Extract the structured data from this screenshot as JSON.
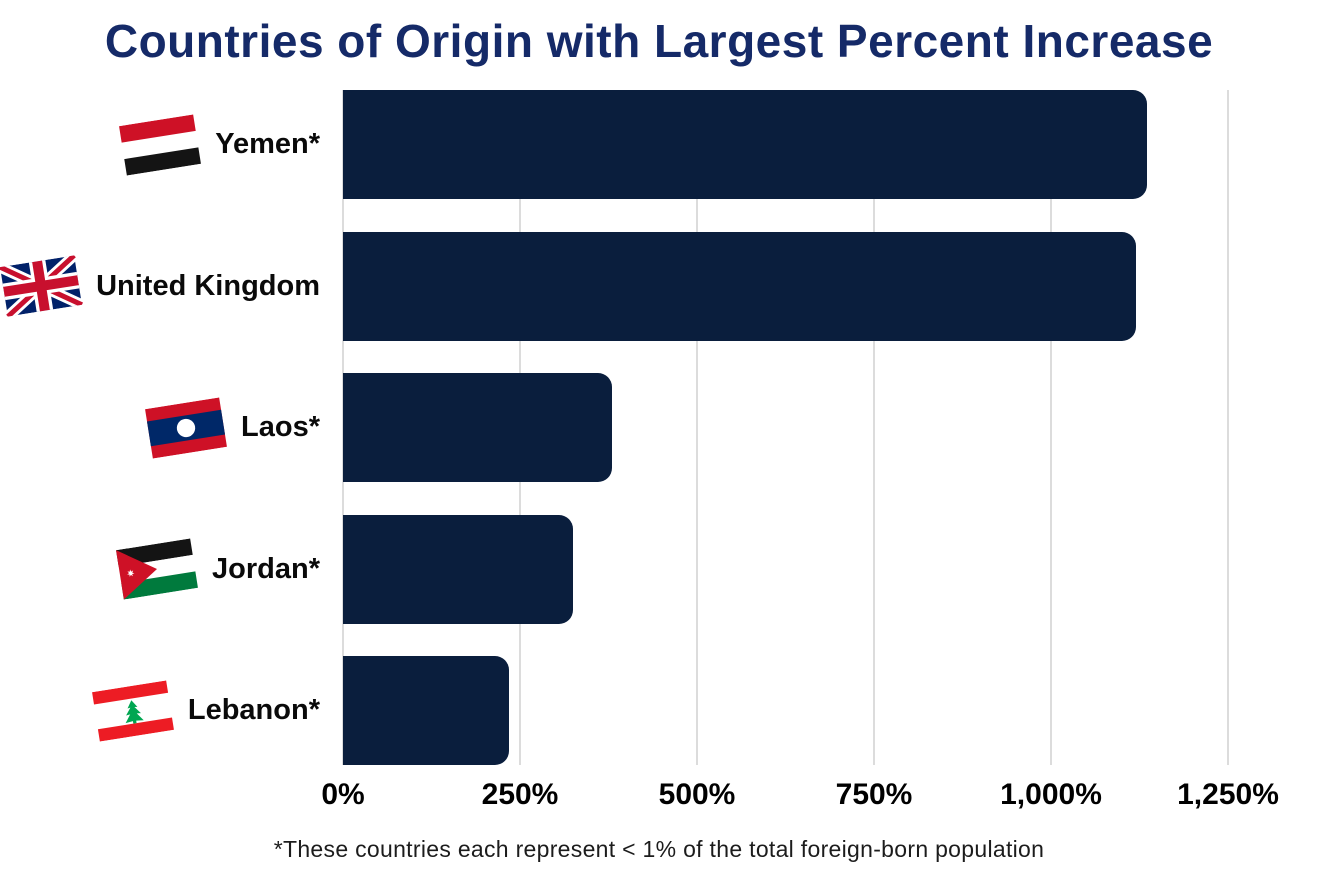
{
  "title": "Countries of Origin with Largest Percent Increase",
  "footnote": "*These countries each represent < 1% of the total foreign-born population",
  "colors": {
    "bar": "#0a1e3d",
    "title_text": "#152a68",
    "gridline": "#dcdcdc",
    "label_text": "#0a0a0a",
    "background": "#ffffff"
  },
  "chart_data": {
    "type": "bar",
    "orientation": "horizontal",
    "title": "Countries of Origin with Largest Percent Increase",
    "categories": [
      "Yemen*",
      "United Kingdom",
      "Laos*",
      "Jordan*",
      "Lebanon*"
    ],
    "values": [
      1135,
      1120,
      380,
      325,
      235
    ],
    "value_unit": "percent",
    "flag_icons": [
      "yemen-flag",
      "united-kingdom-flag",
      "laos-flag",
      "jordan-flag",
      "lebanon-flag"
    ],
    "xlabel": "",
    "ylabel": "",
    "xlim": [
      0,
      1250
    ],
    "x_ticks": [
      0,
      250,
      500,
      750,
      1000,
      1250
    ],
    "x_tick_labels": [
      "0%",
      "250%",
      "500%",
      "750%",
      "1,000%",
      "1,250%"
    ],
    "grid": true,
    "legend": false,
    "bar_color": "#0a1e3d",
    "annotation": "*These countries each represent < 1% of the total foreign-born population"
  }
}
